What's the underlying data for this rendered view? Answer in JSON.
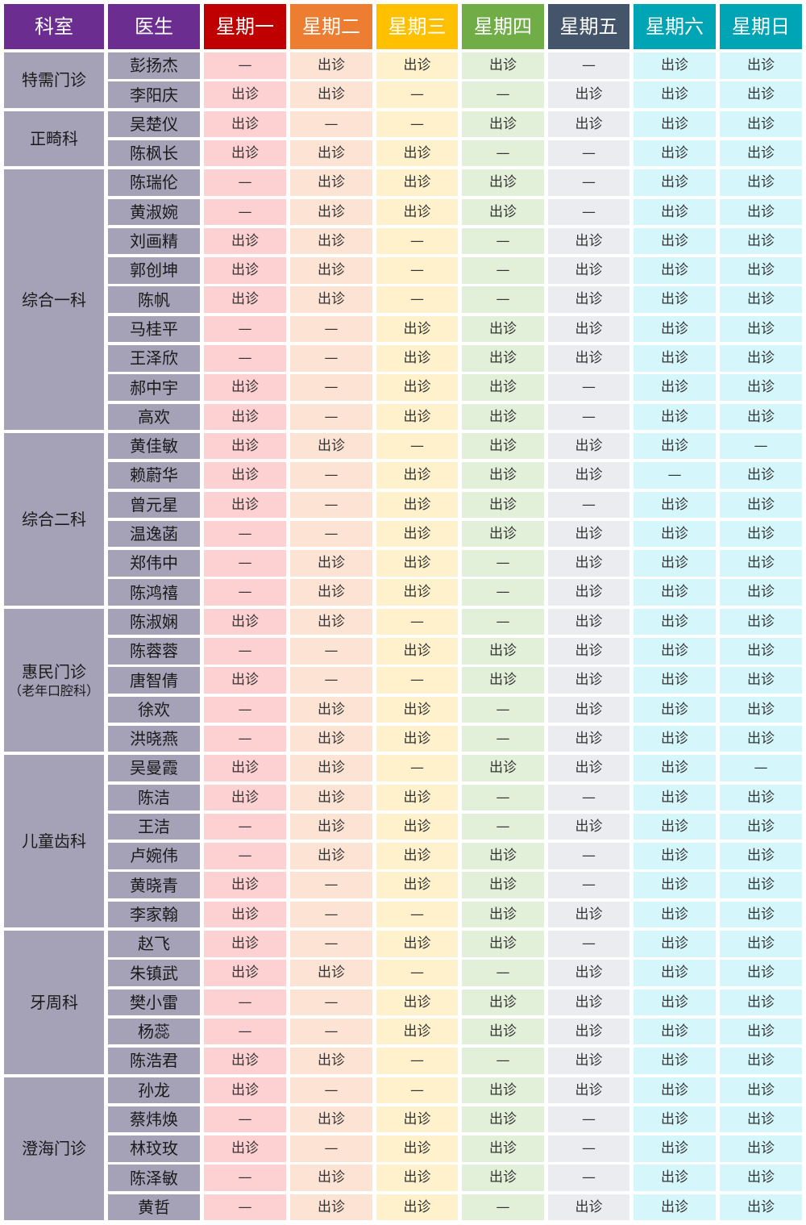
{
  "headers": [
    "科室",
    "医生",
    "星期一",
    "星期二",
    "星期三",
    "星期四",
    "星期五",
    "星期六",
    "星期日"
  ],
  "colors": {
    "header": [
      "#6b2d8f",
      "#6b2d8f",
      "#c00000",
      "#ed7d31",
      "#ffc000",
      "#70ad47",
      "#44546a",
      "#00a5b5",
      "#00a5b5"
    ],
    "days": [
      "#fdd0d2",
      "#fde3d3",
      "#fef1cc",
      "#e2efd9",
      "#ebecef",
      "#d5f6fa",
      "#d5f6fa"
    ],
    "dept": "#a5a2b8"
  },
  "departments": [
    {
      "name": "特需门诊",
      "doctors": [
        {
          "name": "彭扬杰",
          "days": [
            "—",
            "出诊",
            "出诊",
            "出诊",
            "—",
            "出诊",
            "出诊"
          ]
        },
        {
          "name": "李阳庆",
          "days": [
            "出诊",
            "出诊",
            "—",
            "—",
            "出诊",
            "出诊",
            "出诊"
          ]
        }
      ]
    },
    {
      "name": "正畸科",
      "doctors": [
        {
          "name": "吴楚仪",
          "days": [
            "出诊",
            "—",
            "—",
            "出诊",
            "出诊",
            "出诊",
            "出诊"
          ]
        },
        {
          "name": "陈枫长",
          "days": [
            "出诊",
            "出诊",
            "出诊",
            "—",
            "—",
            "出诊",
            "出诊"
          ]
        }
      ]
    },
    {
      "name": "综合一科",
      "doctors": [
        {
          "name": "陈瑞伦",
          "days": [
            "—",
            "出诊",
            "出诊",
            "出诊",
            "—",
            "出诊",
            "出诊"
          ]
        },
        {
          "name": "黄淑婉",
          "days": [
            "—",
            "出诊",
            "出诊",
            "出诊",
            "—",
            "出诊",
            "出诊"
          ]
        },
        {
          "name": "刘画精",
          "days": [
            "出诊",
            "出诊",
            "—",
            "—",
            "出诊",
            "出诊",
            "出诊"
          ]
        },
        {
          "name": "郭创坤",
          "days": [
            "出诊",
            "出诊",
            "—",
            "—",
            "出诊",
            "出诊",
            "出诊"
          ]
        },
        {
          "name": "陈帆",
          "days": [
            "出诊",
            "出诊",
            "—",
            "—",
            "出诊",
            "出诊",
            "出诊"
          ]
        },
        {
          "name": "马桂平",
          "days": [
            "—",
            "—",
            "出诊",
            "出诊",
            "出诊",
            "出诊",
            "出诊"
          ]
        },
        {
          "name": "王泽欣",
          "days": [
            "—",
            "—",
            "出诊",
            "出诊",
            "出诊",
            "出诊",
            "出诊"
          ]
        },
        {
          "name": "郝中宇",
          "days": [
            "出诊",
            "—",
            "出诊",
            "出诊",
            "—",
            "出诊",
            "出诊"
          ]
        },
        {
          "name": "高欢",
          "days": [
            "出诊",
            "—",
            "出诊",
            "出诊",
            "—",
            "出诊",
            "出诊"
          ]
        }
      ]
    },
    {
      "name": "综合二科",
      "doctors": [
        {
          "name": "黄佳敏",
          "days": [
            "出诊",
            "出诊",
            "—",
            "出诊",
            "出诊",
            "出诊",
            "—"
          ]
        },
        {
          "name": "赖蔚华",
          "days": [
            "出诊",
            "—",
            "出诊",
            "出诊",
            "出诊",
            "—",
            "出诊"
          ]
        },
        {
          "name": "曾元星",
          "days": [
            "出诊",
            "—",
            "出诊",
            "出诊",
            "—",
            "出诊",
            "出诊"
          ]
        },
        {
          "name": "温逸菡",
          "days": [
            "—",
            "—",
            "出诊",
            "出诊",
            "出诊",
            "出诊",
            "出诊"
          ]
        },
        {
          "name": "郑伟中",
          "days": [
            "—",
            "出诊",
            "出诊",
            "—",
            "出诊",
            "出诊",
            "出诊"
          ]
        },
        {
          "name": "陈鸿禧",
          "days": [
            "—",
            "出诊",
            "出诊",
            "—",
            "出诊",
            "出诊",
            "出诊"
          ]
        }
      ]
    },
    {
      "name": "惠民门诊",
      "subname": "（老年口腔科）",
      "doctors": [
        {
          "name": "陈淑娴",
          "days": [
            "出诊",
            "出诊",
            "—",
            "—",
            "出诊",
            "出诊",
            "出诊"
          ]
        },
        {
          "name": "陈蓉蓉",
          "days": [
            "—",
            "—",
            "出诊",
            "出诊",
            "出诊",
            "出诊",
            "出诊"
          ]
        },
        {
          "name": "唐智倩",
          "days": [
            "出诊",
            "—",
            "—",
            "出诊",
            "出诊",
            "出诊",
            "出诊"
          ]
        },
        {
          "name": "徐欢",
          "days": [
            "—",
            "出诊",
            "出诊",
            "—",
            "出诊",
            "出诊",
            "出诊"
          ]
        },
        {
          "name": "洪晓燕",
          "days": [
            "—",
            "出诊",
            "出诊",
            "—",
            "出诊",
            "出诊",
            "出诊"
          ]
        }
      ]
    },
    {
      "name": "儿童齿科",
      "doctors": [
        {
          "name": "吴曼霞",
          "days": [
            "出诊",
            "出诊",
            "—",
            "出诊",
            "出诊",
            "出诊",
            "—"
          ]
        },
        {
          "name": "陈洁",
          "days": [
            "出诊",
            "出诊",
            "出诊",
            "—",
            "—",
            "出诊",
            "出诊"
          ]
        },
        {
          "name": "王洁",
          "days": [
            "—",
            "出诊",
            "出诊",
            "—",
            "出诊",
            "出诊",
            "出诊"
          ]
        },
        {
          "name": "卢婉伟",
          "days": [
            "—",
            "出诊",
            "出诊",
            "出诊",
            "—",
            "出诊",
            "出诊"
          ]
        },
        {
          "name": "黄晓青",
          "days": [
            "出诊",
            "—",
            "出诊",
            "出诊",
            "—",
            "出诊",
            "出诊"
          ]
        },
        {
          "name": "李家翰",
          "days": [
            "出诊",
            "—",
            "—",
            "出诊",
            "出诊",
            "出诊",
            "出诊"
          ]
        }
      ]
    },
    {
      "name": "牙周科",
      "doctors": [
        {
          "name": "赵飞",
          "days": [
            "出诊",
            "—",
            "出诊",
            "出诊",
            "—",
            "出诊",
            "出诊"
          ]
        },
        {
          "name": "朱镇武",
          "days": [
            "出诊",
            "出诊",
            "—",
            "—",
            "出诊",
            "出诊",
            "出诊"
          ]
        },
        {
          "name": "樊小雷",
          "days": [
            "—",
            "—",
            "出诊",
            "出诊",
            "出诊",
            "出诊",
            "出诊"
          ]
        },
        {
          "name": "杨蕊",
          "days": [
            "—",
            "—",
            "出诊",
            "出诊",
            "出诊",
            "出诊",
            "出诊"
          ]
        },
        {
          "name": "陈浩君",
          "days": [
            "出诊",
            "出诊",
            "—",
            "—",
            "出诊",
            "出诊",
            "出诊"
          ]
        }
      ]
    },
    {
      "name": "澄海门诊",
      "doctors": [
        {
          "name": "孙龙",
          "days": [
            "出诊",
            "—",
            "—",
            "出诊",
            "出诊",
            "出诊",
            "出诊"
          ]
        },
        {
          "name": "蔡炜焕",
          "days": [
            "—",
            "出诊",
            "出诊",
            "出诊",
            "—",
            "出诊",
            "出诊"
          ]
        },
        {
          "name": "林玟玫",
          "days": [
            "出诊",
            "—",
            "出诊",
            "出诊",
            "—",
            "出诊",
            "出诊"
          ]
        },
        {
          "name": "陈泽敏",
          "days": [
            "—",
            "出诊",
            "出诊",
            "出诊",
            "—",
            "出诊",
            "出诊"
          ]
        },
        {
          "name": "黄哲",
          "days": [
            "—",
            "出诊",
            "出诊",
            "—",
            "出诊",
            "出诊",
            "出诊"
          ]
        }
      ]
    }
  ]
}
